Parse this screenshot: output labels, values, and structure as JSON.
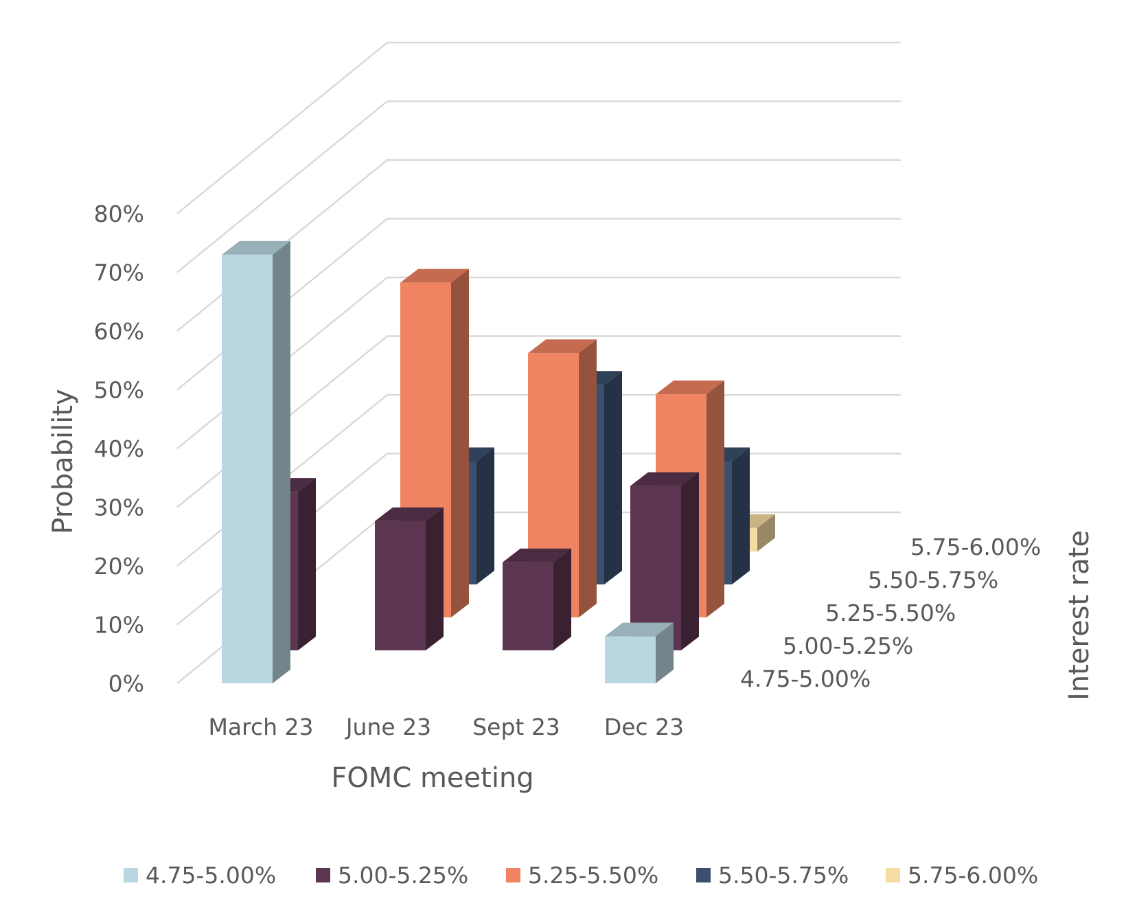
{
  "chart_data": {
    "type": "bar",
    "subtype": "3d-column",
    "categories": [
      "March 23",
      "June 23",
      "Sept 23",
      "Dec 23"
    ],
    "series": [
      {
        "name": "4.75-5.00%",
        "color": "#b9d7e0",
        "values": [
          73,
          0,
          0,
          8
        ]
      },
      {
        "name": "5.00-5.25%",
        "color": "#5c3650",
        "values": [
          27,
          22,
          15,
          28
        ]
      },
      {
        "name": "5.25-5.50%",
        "color": "#f08462",
        "values": [
          0,
          57,
          45,
          38
        ]
      },
      {
        "name": "5.50-5.75%",
        "color": "#3b4f6e",
        "values": [
          0,
          21,
          34,
          21
        ]
      },
      {
        "name": "5.75-6.00%",
        "color": "#f5dca3",
        "values": [
          0,
          0,
          0,
          4
        ]
      }
    ],
    "ytick_labels": [
      "0%",
      "10%",
      "20%",
      "30%",
      "40%",
      "50%",
      "60%",
      "70%",
      "80%"
    ],
    "ylim": [
      0,
      80
    ],
    "xlabel": "FOMC meeting",
    "ylabel": "Probability",
    "zlabel": "Interest rate",
    "legend_position": "bottom",
    "grid": true
  }
}
